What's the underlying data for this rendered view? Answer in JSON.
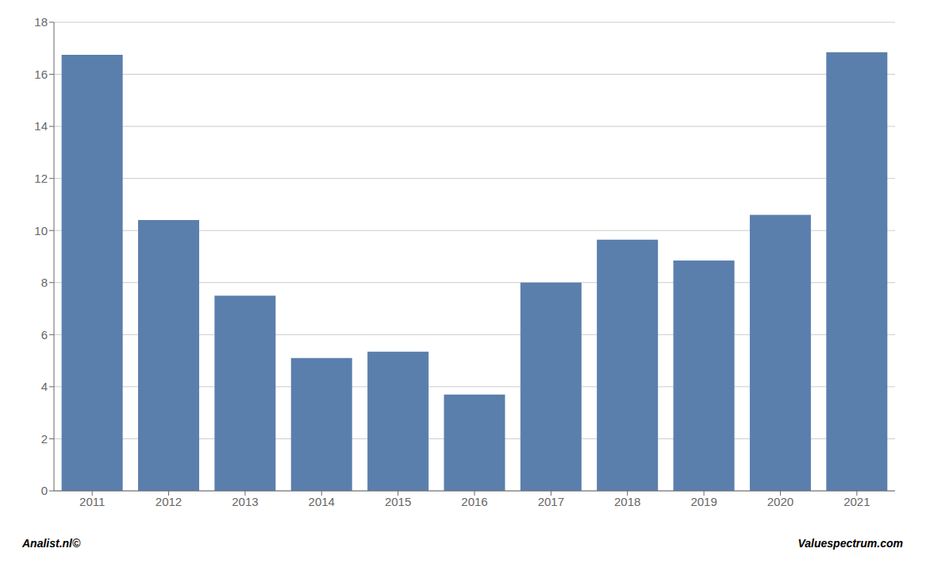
{
  "chart_data": {
    "type": "bar",
    "categories": [
      "2011",
      "2012",
      "2013",
      "2014",
      "2015",
      "2016",
      "2017",
      "2018",
      "2019",
      "2020",
      "2021"
    ],
    "values": [
      16.75,
      10.4,
      7.5,
      5.1,
      5.35,
      3.7,
      8.0,
      9.65,
      8.85,
      10.6,
      16.85
    ],
    "color": "#5b7fad",
    "ylim": [
      0,
      18
    ],
    "yticks": [
      0,
      2,
      4,
      6,
      8,
      10,
      12,
      14,
      16,
      18
    ],
    "grid": true,
    "annotations": [
      "Analist.nl©",
      "Valuespectrum.com"
    ]
  }
}
